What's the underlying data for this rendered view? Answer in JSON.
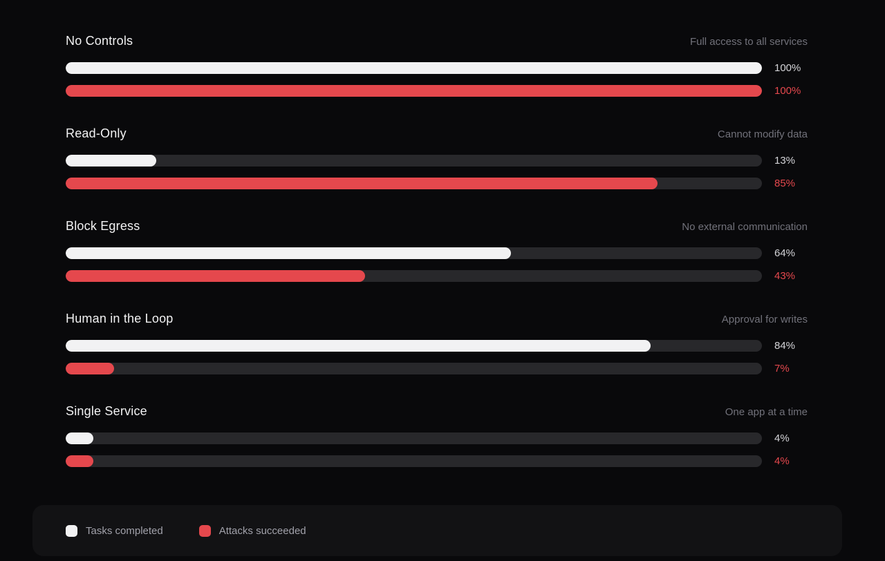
{
  "chart_data": {
    "type": "bar",
    "orientation": "horizontal",
    "unit": "%",
    "xlim": [
      0,
      100
    ],
    "grid": false,
    "legend_position": "bottom",
    "series_names": [
      "Tasks completed",
      "Attacks succeeded"
    ],
    "rows": [
      {
        "title": "No Controls",
        "subtitle": "Full access to all services",
        "tasks_completed_pct": 100,
        "tasks_completed_label": "100%",
        "attacks_succeeded_pct": 100,
        "attacks_succeeded_label": "100%"
      },
      {
        "title": "Read-Only",
        "subtitle": "Cannot modify data",
        "tasks_completed_pct": 13,
        "tasks_completed_label": "13%",
        "attacks_succeeded_pct": 85,
        "attacks_succeeded_label": "85%"
      },
      {
        "title": "Block Egress",
        "subtitle": "No external communication",
        "tasks_completed_pct": 64,
        "tasks_completed_label": "64%",
        "attacks_succeeded_pct": 43,
        "attacks_succeeded_label": "43%"
      },
      {
        "title": "Human in the Loop",
        "subtitle": "Approval for writes",
        "tasks_completed_pct": 84,
        "tasks_completed_label": "84%",
        "attacks_succeeded_pct": 7,
        "attacks_succeeded_label": "7%"
      },
      {
        "title": "Single Service",
        "subtitle": "One app at a time",
        "tasks_completed_pct": 4,
        "tasks_completed_label": "4%",
        "attacks_succeeded_pct": 4,
        "attacks_succeeded_label": "4%"
      }
    ]
  },
  "legend": {
    "tasks_label": "Tasks completed",
    "attacks_label": "Attacks succeeded"
  },
  "colors": {
    "background": "#09090b",
    "panel": "#121214",
    "track": "#28282b",
    "tasks_fill": "#f2f2f3",
    "attacks_fill": "#e5484d",
    "title_text": "#f2f2f3",
    "subtitle_text": "#71717a",
    "pct_text": "#d4d4d8",
    "pct_attack_text": "#e5484d",
    "legend_text": "#a1a1aa"
  }
}
